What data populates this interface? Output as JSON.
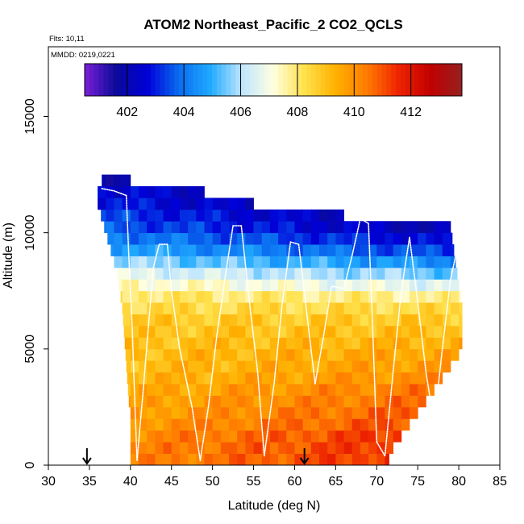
{
  "chart_data": {
    "type": "heatmap",
    "title": "ATOM2 Northeast_Pacific_2 CO2_QCLS",
    "flights_label": "Flts: 10,11",
    "mmdd_label": "MMDD: 0219,0221",
    "xlabel": "Latitude (deg N)",
    "ylabel": "Altitude (m)",
    "xlim": [
      30,
      85
    ],
    "ylim": [
      0,
      18000
    ],
    "x_ticks": [
      30,
      35,
      40,
      45,
      50,
      55,
      60,
      65,
      70,
      75,
      80,
      85
    ],
    "y_ticks": [
      0,
      5000,
      10000,
      15000
    ],
    "colorbar": {
      "range": [
        400.5,
        413.8
      ],
      "ticks": [
        402,
        404,
        406,
        408,
        410,
        412
      ],
      "colors": [
        "#7a1fd6",
        "#0a0a9a",
        "#0000d8",
        "#0a6cf0",
        "#20aaff",
        "#bfe6ff",
        "#ffffe0",
        "#ffe14a",
        "#ffb000",
        "#ff7a00",
        "#ee2200",
        "#c00000",
        "#962020"
      ]
    },
    "arrows_lat": [
      34.7,
      61.2
    ],
    "grid": {
      "lat_start": 36,
      "lat_step": 1,
      "alt_start": 0,
      "alt_step": 500,
      "coverage_by_row": [
        [
          40,
          71.5
        ],
        [
          40,
          72
        ],
        [
          40,
          73
        ],
        [
          40,
          74
        ],
        [
          40,
          75
        ],
        [
          39.8,
          76
        ],
        [
          39.7,
          77
        ],
        [
          39.6,
          78
        ],
        [
          39.5,
          79
        ],
        [
          39.4,
          80
        ],
        [
          39.3,
          80.4
        ],
        [
          39.2,
          80.4
        ],
        [
          39.1,
          80.4
        ],
        [
          39,
          80.4
        ],
        [
          38.8,
          80.2
        ],
        [
          38.6,
          80
        ],
        [
          38.4,
          79.8
        ],
        [
          38,
          79.6
        ],
        [
          37.6,
          79.4
        ],
        [
          37.2,
          79.2
        ],
        [
          36.8,
          79
        ],
        [
          36.4,
          66
        ],
        [
          36,
          55
        ],
        [
          36,
          49
        ],
        [
          36.5,
          40
        ]
      ],
      "profile_by_row": [
        411.0,
        411.0,
        410.9,
        410.6,
        410.4,
        410.2,
        410.0,
        409.7,
        409.5,
        409.4,
        409.2,
        409.0,
        408.8,
        408.4,
        407.9,
        407.0,
        406.0,
        405.0,
        404.0,
        403.3,
        402.7,
        402.4,
        402.0,
        401.8,
        401.3
      ],
      "lat_gradient": [
        0.04,
        0.04,
        0.04,
        0.035,
        0.035,
        0.03,
        0.03,
        0.025,
        0.02,
        0.015,
        0.01,
        0.005,
        0,
        0,
        -0.01,
        -0.02,
        -0.03,
        -0.035,
        -0.04,
        -0.04,
        -0.04,
        -0.04,
        -0.04,
        -0.04,
        -0.03
      ]
    },
    "flight_tracks": [
      {
        "lat": [
          36.5,
          38,
          39.5
        ],
        "alt": [
          11900,
          11800,
          11600
        ]
      },
      {
        "lat": [
          39.5,
          39.8,
          40.2,
          40.5,
          40.8
        ],
        "alt": [
          11600,
          9000,
          6000,
          3000,
          200
        ]
      },
      {
        "lat": [
          40.8,
          41.5,
          42.2,
          42.8,
          43.5
        ],
        "alt": [
          200,
          3000,
          6000,
          8500,
          9500
        ]
      },
      {
        "lat": [
          43.5,
          44.5
        ],
        "alt": [
          9500,
          9500
        ]
      },
      {
        "lat": [
          44.5,
          45,
          46,
          47.5,
          48.5
        ],
        "alt": [
          9500,
          7500,
          5000,
          2500,
          200
        ]
      },
      {
        "lat": [
          48.5,
          49.5,
          50.5,
          51.5,
          52.5
        ],
        "alt": [
          200,
          2500,
          5500,
          8000,
          10300
        ]
      },
      {
        "lat": [
          52.5,
          53.5
        ],
        "alt": [
          10300,
          10300
        ]
      },
      {
        "lat": [
          53.5,
          54.5,
          55.5,
          56.3
        ],
        "alt": [
          10300,
          7000,
          4000,
          400
        ]
      },
      {
        "lat": [
          56.3,
          57.5,
          58.5,
          59.5
        ],
        "alt": [
          400,
          3500,
          7000,
          9600
        ]
      },
      {
        "lat": [
          59.5,
          60.5
        ],
        "alt": [
          9600,
          9500
        ]
      },
      {
        "lat": [
          60.5,
          61.5,
          62.5
        ],
        "alt": [
          9500,
          6500,
          3500
        ]
      },
      {
        "lat": [
          62.5,
          63.5,
          64.5
        ],
        "alt": [
          3500,
          5500,
          7700
        ]
      },
      {
        "lat": [
          64.5,
          66
        ],
        "alt": [
          7700,
          7600
        ]
      },
      {
        "lat": [
          66,
          67,
          68
        ],
        "alt": [
          7600,
          9000,
          10600
        ]
      },
      {
        "lat": [
          68,
          69
        ],
        "alt": [
          10600,
          10400
        ]
      },
      {
        "lat": [
          69,
          69.5,
          70
        ],
        "alt": [
          10400,
          6000,
          1000
        ]
      },
      {
        "lat": [
          70,
          71
        ],
        "alt": [
          1000,
          400
        ]
      },
      {
        "lat": [
          71,
          72,
          73,
          74
        ],
        "alt": [
          400,
          4000,
          7500,
          9800
        ]
      },
      {
        "lat": [
          74,
          75,
          76,
          77
        ],
        "alt": [
          9800,
          7000,
          4000,
          1800
        ]
      },
      {
        "lat": [
          77,
          78,
          79,
          80
        ],
        "alt": [
          1800,
          5000,
          8000,
          9600
        ]
      }
    ]
  }
}
